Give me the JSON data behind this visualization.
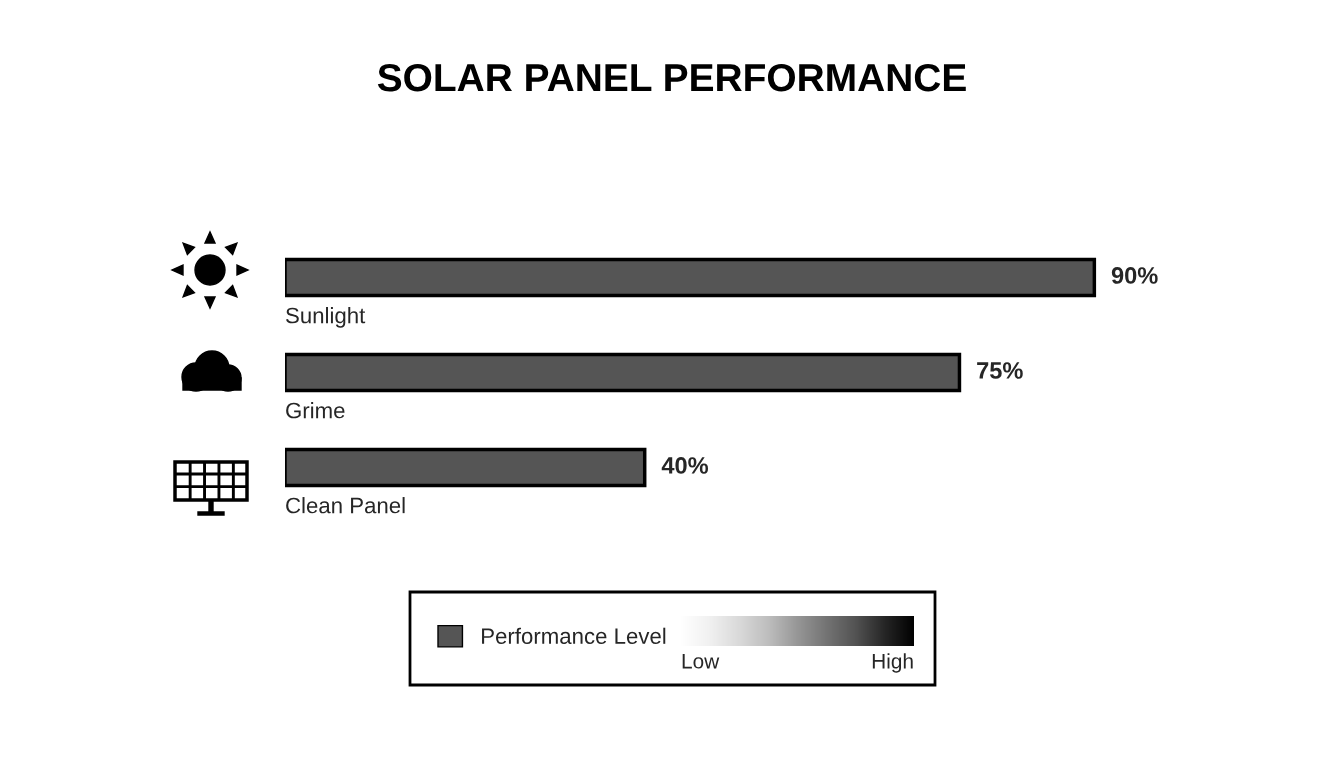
{
  "chart_data": {
    "type": "bar",
    "orientation": "horizontal",
    "title": "SOLAR PANEL PERFORMANCE",
    "categories": [
      "Sunlight",
      "Grime",
      "Clean Panel"
    ],
    "series": [
      {
        "name": "Performance Level",
        "color": "#555555",
        "values": [
          90,
          75,
          40
        ],
        "value_labels": [
          "90%",
          "75%",
          "40%"
        ]
      }
    ],
    "annotations": [
      "Low",
      "High"
    ],
    "tick_labels": false,
    "legend": "bottom"
  }
}
